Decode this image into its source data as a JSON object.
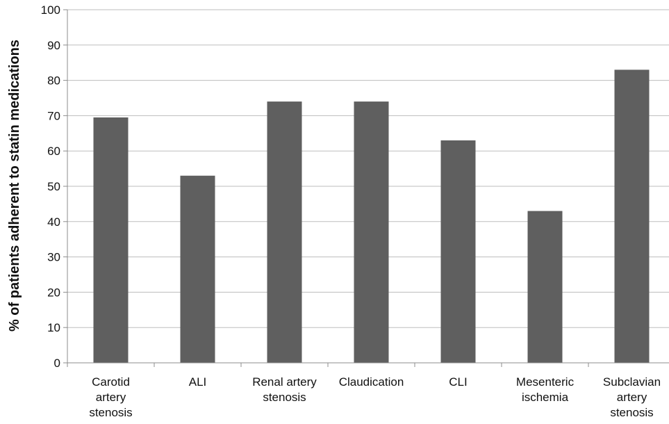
{
  "chart_data": {
    "type": "bar",
    "title": "",
    "xlabel": "",
    "ylabel": "% of patients adherent to statin medications",
    "ylim": [
      0,
      100
    ],
    "yticks": [
      0,
      10,
      20,
      30,
      40,
      50,
      60,
      70,
      80,
      90,
      100
    ],
    "grid": true,
    "legend": "none",
    "categories": [
      [
        "Carotid",
        "artery",
        "stenosis"
      ],
      [
        "ALI"
      ],
      [
        "Renal artery",
        "stenosis"
      ],
      [
        "Claudication"
      ],
      [
        "CLI"
      ],
      [
        "Mesenteric",
        "ischemia"
      ],
      [
        "Subclavian",
        "artery",
        "stenosis"
      ]
    ],
    "values": [
      69.5,
      53,
      74,
      74,
      63,
      43,
      83
    ],
    "colors": {
      "bar": "#5f5f5f",
      "grid": "#bdbdbd",
      "axis": "#8c8c8c"
    }
  }
}
